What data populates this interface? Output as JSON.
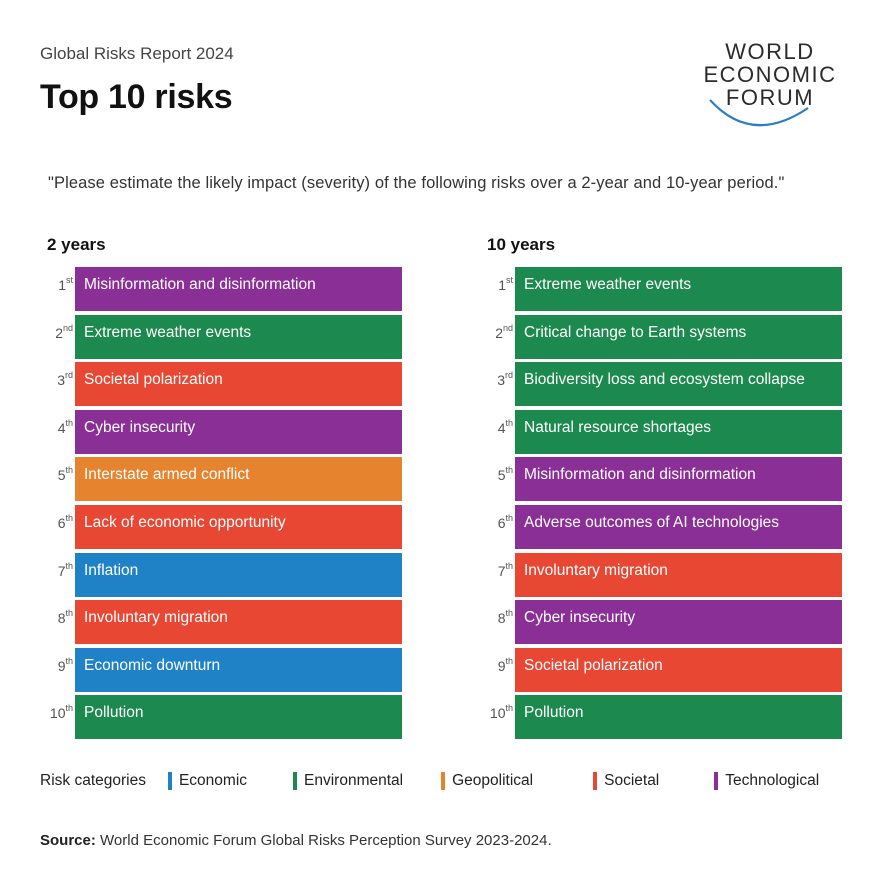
{
  "header": {
    "report_label": "Global Risks Report 2024",
    "title": "Top 10 risks"
  },
  "logo": {
    "line1": "WORLD",
    "line2": "ECONOMIC",
    "line3": "FORUM"
  },
  "quote": "\"Please estimate the likely impact (severity) of the following risks over a 2-year and 10-year period.\"",
  "colors": {
    "Economic": "#1f82c7",
    "Environmental": "#1c8a4f",
    "Geopolitical": "#e6832e",
    "Societal": "#e84733",
    "Technological": "#8a2f96"
  },
  "two_years": {
    "heading": "2 years",
    "items": [
      {
        "rank": "1",
        "suffix": "st",
        "label": "Misinformation and disinformation",
        "category": "Technological"
      },
      {
        "rank": "2",
        "suffix": "nd",
        "label": "Extreme weather events",
        "category": "Environmental"
      },
      {
        "rank": "3",
        "suffix": "rd",
        "label": "Societal polarization",
        "category": "Societal"
      },
      {
        "rank": "4",
        "suffix": "th",
        "label": "Cyber insecurity",
        "category": "Technological"
      },
      {
        "rank": "5",
        "suffix": "th",
        "label": "Interstate armed conflict",
        "category": "Geopolitical"
      },
      {
        "rank": "6",
        "suffix": "th",
        "label": "Lack of economic opportunity",
        "category": "Societal"
      },
      {
        "rank": "7",
        "suffix": "th",
        "label": "Inflation",
        "category": "Economic"
      },
      {
        "rank": "8",
        "suffix": "th",
        "label": "Involuntary migration",
        "category": "Societal"
      },
      {
        "rank": "9",
        "suffix": "th",
        "label": "Economic downturn",
        "category": "Economic"
      },
      {
        "rank": "10",
        "suffix": "th",
        "label": "Pollution",
        "category": "Environmental"
      }
    ]
  },
  "ten_years": {
    "heading": "10 years",
    "items": [
      {
        "rank": "1",
        "suffix": "st",
        "label": "Extreme weather events",
        "category": "Environmental"
      },
      {
        "rank": "2",
        "suffix": "nd",
        "label": "Critical change to Earth systems",
        "category": "Environmental"
      },
      {
        "rank": "3",
        "suffix": "rd",
        "label": "Biodiversity loss and ecosystem collapse",
        "category": "Environmental"
      },
      {
        "rank": "4",
        "suffix": "th",
        "label": "Natural resource shortages",
        "category": "Environmental"
      },
      {
        "rank": "5",
        "suffix": "th",
        "label": "Misinformation and disinformation",
        "category": "Technological"
      },
      {
        "rank": "6",
        "suffix": "th",
        "label": "Adverse outcomes of AI technologies",
        "category": "Technological"
      },
      {
        "rank": "7",
        "suffix": "th",
        "label": "Involuntary migration",
        "category": "Societal"
      },
      {
        "rank": "8",
        "suffix": "th",
        "label": "Cyber insecurity",
        "category": "Technological"
      },
      {
        "rank": "9",
        "suffix": "th",
        "label": "Societal polarization",
        "category": "Societal"
      },
      {
        "rank": "10",
        "suffix": "th",
        "label": "Pollution",
        "category": "Environmental"
      }
    ]
  },
  "legend": {
    "title": "Risk categories",
    "items": [
      "Economic",
      "Environmental",
      "Geopolitical",
      "Societal",
      "Technological"
    ]
  },
  "source": {
    "label": "Source:",
    "text": " World Economic Forum Global Risks Perception Survey 2023-2024."
  }
}
